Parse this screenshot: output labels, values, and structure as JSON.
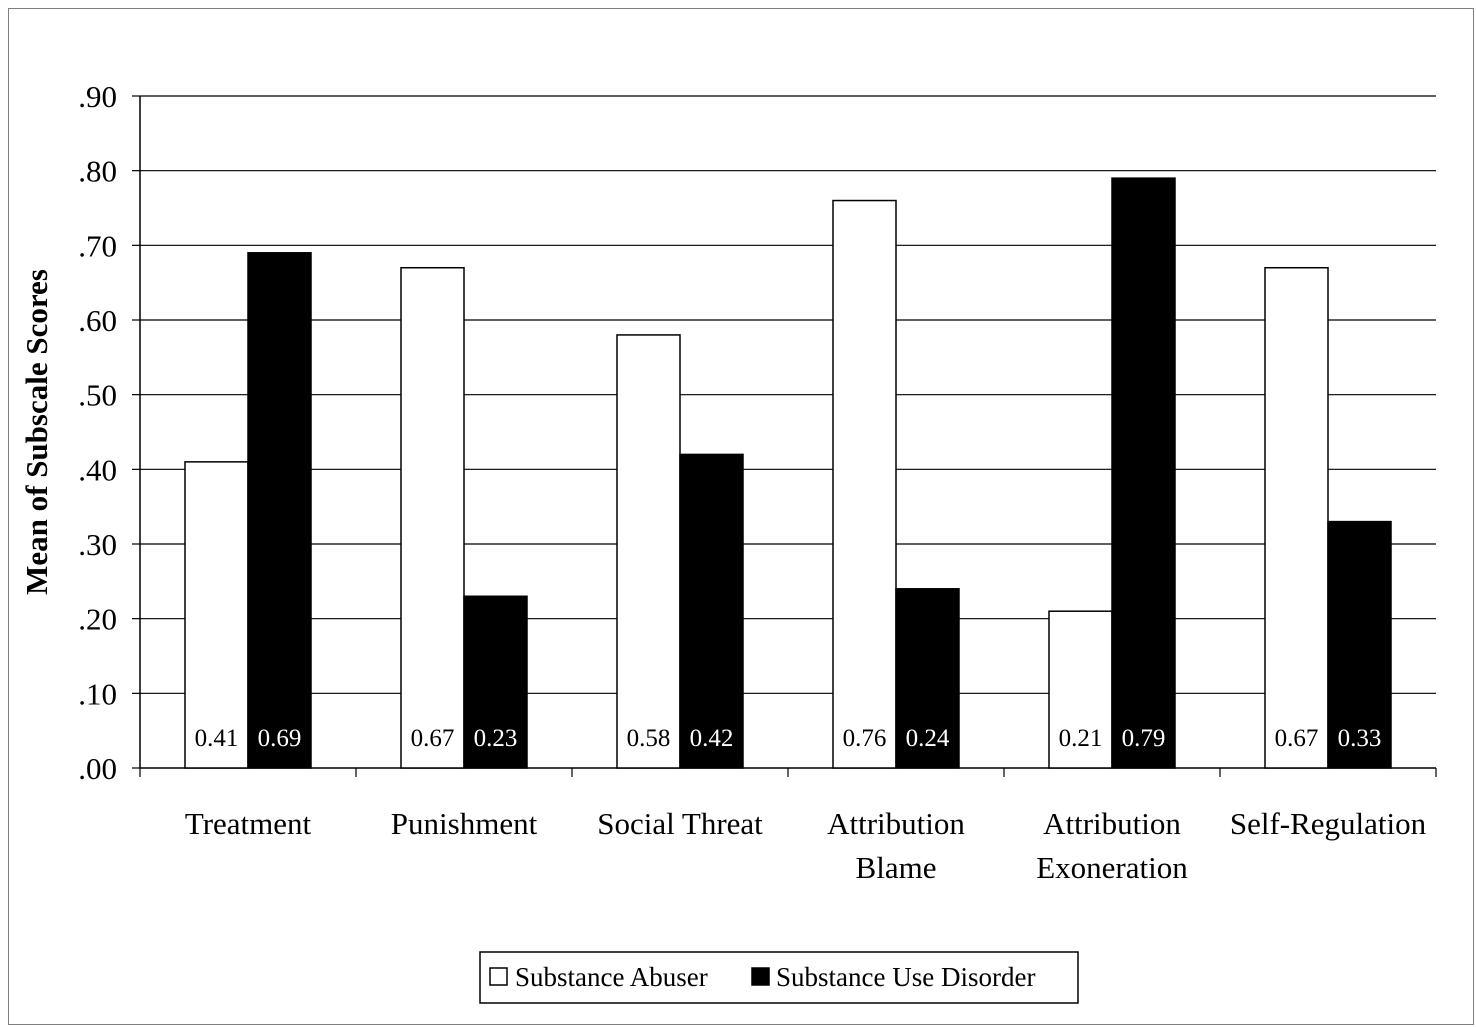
{
  "chart_data": {
    "type": "bar",
    "title": "",
    "xlabel": "",
    "ylabel": "Mean of Subscale Scores",
    "ylim": [
      0,
      0.9
    ],
    "yticks": [
      0,
      0.1,
      0.2,
      0.3,
      0.4,
      0.5,
      0.6,
      0.7,
      0.8,
      0.9
    ],
    "ytick_labels": [
      ".00",
      ".10",
      ".20",
      ".30",
      ".40",
      ".50",
      ".60",
      ".70",
      ".80",
      ".90"
    ],
    "grid": "horizontal",
    "legend_position": "bottom-center",
    "categories": [
      [
        "Treatment"
      ],
      [
        "Punishment"
      ],
      [
        "Social Threat"
      ],
      [
        "Attribution",
        "Blame"
      ],
      [
        "Attribution",
        "Exoneration"
      ],
      [
        "Self-Regulation"
      ]
    ],
    "series": [
      {
        "name": "Substance Abuser",
        "color": "#ffffff",
        "label_color": "#000000",
        "values": [
          0.41,
          0.67,
          0.58,
          0.76,
          0.21,
          0.67
        ],
        "labels": [
          "0.41",
          "0.67",
          "0.58",
          "0.76",
          "0.21",
          "0.67"
        ]
      },
      {
        "name": "Substance Use Disorder",
        "color": "#000000",
        "label_color": "#ffffff",
        "values": [
          0.69,
          0.23,
          0.42,
          0.24,
          0.79,
          0.33
        ],
        "labels": [
          "0.69",
          "0.23",
          "0.42",
          "0.24",
          "0.79",
          "0.33"
        ]
      }
    ]
  }
}
